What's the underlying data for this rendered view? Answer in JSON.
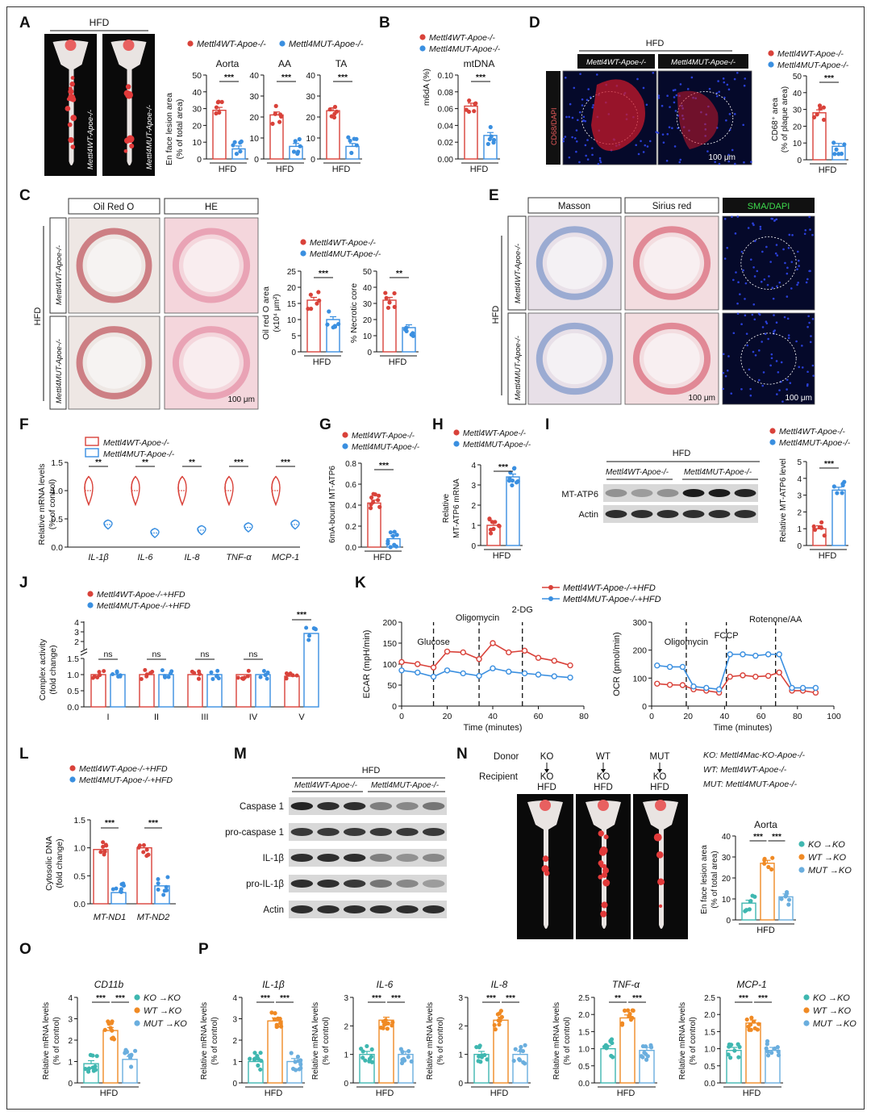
{
  "colors": {
    "wt": "#d9423a",
    "mut": "#3a8fe0",
    "ko": "#3fb7b0",
    "wt_o": "#f08a24",
    "mut_o": "#6aaede"
  },
  "labels": {
    "hfd": "HFD",
    "wt_apoe": "Mettl4WT-Apoe-/-",
    "mut_apoe": "Mettl4MUT-Apoe-/-",
    "wt_apoe_hfd": "Mettl4WT-Apoe-/-+HFD",
    "mut_apoe_hfd": "Mettl4MUT-Apoe-/-+HFD",
    "ko_ko": "KO →KO",
    "wt_ko": "WT →KO",
    "mut_ko": "MUT →KO",
    "scale100": "100 μm"
  },
  "panels": {
    "A": {
      "letter": "A",
      "ylabel1": "En face lesion area",
      "ylabel2": "(% of total area)"
    },
    "B": {
      "letter": "B"
    },
    "C": {
      "letter": "C",
      "col1": "Oil Red O",
      "col2": "HE",
      "y1a": "Oil red O area",
      "y1b": "(x10⁴ μm²)",
      "y2": "% Necrotic core"
    },
    "D": {
      "letter": "D",
      "stain": "CD68/DAPI",
      "y1": "CD68⁺ area",
      "y2": "(% of plaque area)"
    },
    "E": {
      "letter": "E",
      "col1": "Masson",
      "col2": "Sirius red",
      "col3": "SMA/DAPI"
    },
    "F": {
      "letter": "F",
      "y1": "Relative mRNA levels",
      "y2": "(% of control)"
    },
    "G": {
      "letter": "G",
      "y1": "6mA-bound MT-ATP6"
    },
    "H": {
      "letter": "H",
      "y1": "Relative",
      "y2": "MT-ATP6 mRNA"
    },
    "I": {
      "letter": "I",
      "band1": "MT-ATP6",
      "band2": "Actin",
      "y1": "Relative MT-ATP6 level"
    },
    "J": {
      "letter": "J",
      "y1": "Complex activity",
      "y2": "(fold change)"
    },
    "K": {
      "letter": "K",
      "marks1": [
        "Glucose",
        "Oligomycin",
        "2-DG"
      ],
      "marks2": [
        "Oligomycin",
        "FCCP",
        "Rotenone/AA"
      ]
    },
    "L": {
      "letter": "L",
      "y1": "Cytosolic DNA",
      "y2": "(fold change)"
    },
    "M": {
      "letter": "M",
      "bands": [
        "Caspase 1",
        "pro-caspase 1",
        "IL-1β",
        "pro-IL-1β",
        "Actin"
      ]
    },
    "N": {
      "letter": "N",
      "donor": "Donor",
      "recipient": "Recipient",
      "ko": "KO",
      "wt": "WT",
      "mut": "MUT",
      "leg1": "KO: Mettl4Mac-KO-Apoe-/-",
      "leg2": "WT: Mettl4WT-Apoe-/-",
      "leg3": "MUT: Mettl4MUT-Apoe-/-",
      "title": "Aorta",
      "y1": "En face lesion area",
      "y2": "(% of total area)"
    },
    "O": {
      "letter": "O",
      "y1": "Relative mRNA levels",
      "y2": "(% of control)"
    },
    "P": {
      "letter": "P"
    }
  },
  "chart_data": [
    {
      "id": "A1",
      "type": "bar",
      "title": "Aorta",
      "categories": [
        "Mettl4WT-Apoe-/-",
        "Mettl4MUT-Apoe-/-"
      ],
      "values": [
        29,
        6
      ],
      "ylim": [
        0,
        50
      ],
      "ticks": [
        0,
        10,
        20,
        30,
        40,
        50
      ],
      "sig": "***",
      "xlabel": "HFD"
    },
    {
      "id": "A2",
      "type": "bar",
      "title": "AA",
      "categories": [
        "Mettl4WT-Apoe-/-",
        "Mettl4MUT-Apoe-/-"
      ],
      "values": [
        21,
        6
      ],
      "ylim": [
        0,
        40
      ],
      "ticks": [
        0,
        10,
        20,
        30,
        40
      ],
      "sig": "***",
      "xlabel": "HFD"
    },
    {
      "id": "A3",
      "type": "bar",
      "title": "TA",
      "categories": [
        "Mettl4WT-Apoe-/-",
        "Mettl4MUT-Apoe-/-"
      ],
      "values": [
        23,
        6
      ],
      "ylim": [
        0,
        40
      ],
      "ticks": [
        0,
        10,
        20,
        30,
        40
      ],
      "sig": "***",
      "xlabel": "HFD"
    },
    {
      "id": "B",
      "type": "bar",
      "title": "mtDNA",
      "ylabel": "m6dA (%)",
      "categories": [
        "Mettl4WT-Apoe-/-",
        "Mettl4MUT-Apoe-/-"
      ],
      "values": [
        0.063,
        0.028
      ],
      "ylim": [
        0,
        0.1
      ],
      "ticks": [
        "0.00",
        "0.02",
        "0.04",
        "0.06",
        "0.08",
        "0.10"
      ],
      "sig": "***",
      "xlabel": "HFD"
    },
    {
      "id": "C1",
      "type": "bar",
      "categories": [
        "Mettl4WT-Apoe-/-",
        "Mettl4MUT-Apoe-/-"
      ],
      "values": [
        16,
        10
      ],
      "ylim": [
        0,
        25
      ],
      "ticks": [
        0,
        5,
        10,
        15,
        20,
        25
      ],
      "sig": "***",
      "xlabel": "HFD"
    },
    {
      "id": "C2",
      "type": "bar",
      "categories": [
        "Mettl4WT-Apoe-/-",
        "Mettl4MUT-Apoe-/-"
      ],
      "values": [
        32,
        15
      ],
      "ylim": [
        0,
        50
      ],
      "ticks": [
        0,
        10,
        20,
        30,
        40,
        50
      ],
      "sig": "**",
      "xlabel": "HFD"
    },
    {
      "id": "D",
      "type": "bar",
      "categories": [
        "Mettl4WT-Apoe-/-",
        "Mettl4MUT-Apoe-/-"
      ],
      "values": [
        28,
        8
      ],
      "ylim": [
        0,
        50
      ],
      "ticks": [
        0,
        10,
        20,
        30,
        40,
        50
      ],
      "sig": "***",
      "xlabel": "HFD"
    },
    {
      "id": "F",
      "type": "violin",
      "categories": [
        "IL-1β",
        "IL-6",
        "IL-8",
        "TNF-α",
        "MCP-1"
      ],
      "series": [
        {
          "name": "Mettl4WT-Apoe-/-",
          "values": [
            1.0,
            1.0,
            1.0,
            1.0,
            1.0
          ]
        },
        {
          "name": "Mettl4MUT-Apoe-/-",
          "values": [
            0.4,
            0.25,
            0.3,
            0.35,
            0.4
          ]
        }
      ],
      "ylim": [
        0,
        1.5
      ],
      "ticks": [
        "0.0",
        "0.5",
        "1.0",
        "1.5"
      ],
      "sig": [
        "**",
        "**",
        "**",
        "***",
        "***"
      ]
    },
    {
      "id": "G",
      "type": "bar",
      "categories": [
        "Mettl4WT-Apoe-/-",
        "Mettl4MUT-Apoe-/-"
      ],
      "values": [
        0.42,
        0.08
      ],
      "ylim": [
        0,
        0.8
      ],
      "ticks": [
        "0.0",
        "0.2",
        "0.4",
        "0.6",
        "0.8"
      ],
      "sig": "***",
      "xlabel": "HFD"
    },
    {
      "id": "H",
      "type": "bar",
      "categories": [
        "Mettl4WT-Apoe-/-",
        "Mettl4MUT-Apoe-/-"
      ],
      "values": [
        1.0,
        3.4
      ],
      "ylim": [
        0,
        4
      ],
      "ticks": [
        0,
        1,
        2,
        3,
        4
      ],
      "sig": "***",
      "xlabel": "HFD"
    },
    {
      "id": "I",
      "type": "bar",
      "categories": [
        "Mettl4WT-Apoe-/-",
        "Mettl4MUT-Apoe-/-"
      ],
      "values": [
        1.0,
        3.3
      ],
      "ylim": [
        0,
        5
      ],
      "ticks": [
        0,
        1,
        2,
        3,
        4,
        5
      ],
      "sig": "***",
      "xlabel": "HFD"
    },
    {
      "id": "J",
      "type": "bar",
      "categories": [
        "I",
        "II",
        "III",
        "IV",
        "V"
      ],
      "series": [
        {
          "name": "Mettl4WT-Apoe-/-+HFD",
          "values": [
            1.0,
            1.0,
            1.0,
            1.0,
            0.95
          ]
        },
        {
          "name": "Mettl4MUT-Apoe-/-+HFD",
          "values": [
            1.0,
            1.0,
            1.0,
            1.0,
            2.9
          ]
        }
      ],
      "ylim": [
        0,
        4
      ],
      "ticks": [
        "0.0",
        "0.5",
        "1.0",
        "1.5",
        "2",
        "3",
        "4"
      ],
      "sig": [
        "ns",
        "ns",
        "ns",
        "ns",
        "***"
      ]
    },
    {
      "id": "K1",
      "type": "line",
      "xlabel": "Time (minutes)",
      "ylabel": "ECAR (mpH/min)",
      "xlim": [
        0,
        80
      ],
      "ylim": [
        0,
        200
      ],
      "xticks": [
        0,
        20,
        40,
        60,
        80
      ],
      "yticks": [
        0,
        50,
        100,
        150,
        200
      ],
      "x": [
        0,
        7,
        14,
        20,
        27,
        34,
        40,
        47,
        54,
        60,
        67,
        74
      ],
      "series": [
        {
          "name": "Mettl4WT-Apoe-/-+HFD",
          "values": [
            105,
            100,
            92,
            130,
            128,
            112,
            150,
            128,
            132,
            115,
            108,
            97
          ]
        },
        {
          "name": "Mettl4MUT-Apoe-/-+HFD",
          "values": [
            85,
            80,
            70,
            85,
            78,
            72,
            90,
            82,
            78,
            75,
            71,
            68
          ]
        }
      ],
      "events": [
        14,
        34,
        53
      ]
    },
    {
      "id": "K2",
      "type": "line",
      "xlabel": "Time (minutes)",
      "ylabel": "OCR (pmol/min)",
      "xlim": [
        0,
        100
      ],
      "ylim": [
        0,
        300
      ],
      "xticks": [
        0,
        20,
        40,
        60,
        80,
        100
      ],
      "yticks": [
        0,
        100,
        200,
        300
      ],
      "x": [
        3,
        10,
        17,
        23,
        30,
        37,
        43,
        50,
        57,
        64,
        70,
        77,
        83,
        90
      ],
      "series": [
        {
          "name": "Mettl4WT-Apoe-/-+HFD",
          "values": [
            80,
            76,
            75,
            60,
            55,
            48,
            105,
            110,
            105,
            108,
            120,
            55,
            55,
            48
          ]
        },
        {
          "name": "Mettl4MUT-Apoe-/-+HFD",
          "values": [
            145,
            140,
            140,
            70,
            65,
            60,
            185,
            185,
            180,
            185,
            185,
            65,
            65,
            65
          ]
        }
      ],
      "events": [
        19,
        41,
        68
      ]
    },
    {
      "id": "L",
      "type": "bar",
      "categories": [
        "MT-ND1",
        "MT-ND2"
      ],
      "series": [
        {
          "name": "Mettl4WT-Apoe-/-+HFD",
          "values": [
            0.97,
            1.0
          ]
        },
        {
          "name": "Mettl4MUT-Apoe-/-+HFD",
          "values": [
            0.2,
            0.32
          ]
        }
      ],
      "ylim": [
        0,
        1.5
      ],
      "ticks": [
        "0.0",
        "0.5",
        "1.0",
        "1.5"
      ],
      "sig": [
        "***",
        "***"
      ]
    },
    {
      "id": "N",
      "type": "bar",
      "title": "Aorta",
      "categories": [
        "KO →KO",
        "WT →KO",
        "MUT →KO"
      ],
      "values": [
        8,
        27,
        11
      ],
      "ylim": [
        0,
        40
      ],
      "ticks": [
        0,
        10,
        20,
        30,
        40
      ],
      "sig": [
        "***",
        "***"
      ],
      "xlabel": "HFD"
    },
    {
      "id": "O",
      "type": "bar",
      "title": "CD11b",
      "categories": [
        "KO →KO",
        "WT →KO",
        "MUT →KO"
      ],
      "values": [
        0.9,
        2.45,
        1.1
      ],
      "ylim": [
        0,
        4
      ],
      "ticks": [
        0,
        1,
        2,
        3,
        4
      ],
      "sig": [
        "***",
        "***"
      ],
      "xlabel": "HFD"
    },
    {
      "id": "P1",
      "type": "bar",
      "title": "IL-1β",
      "categories": [
        "KO →KO",
        "WT →KO",
        "MUT →KO"
      ],
      "values": [
        1.0,
        2.9,
        1.0
      ],
      "ylim": [
        0,
        4
      ],
      "ticks": [
        0,
        1,
        2,
        3,
        4
      ],
      "sig": [
        "***",
        "***"
      ],
      "xlabel": "HFD"
    },
    {
      "id": "P2",
      "type": "bar",
      "title": "IL-6",
      "categories": [
        "KO →KO",
        "WT →KO",
        "MUT →KO"
      ],
      "values": [
        1.0,
        2.2,
        1.0
      ],
      "ylim": [
        0,
        3
      ],
      "ticks": [
        0,
        1,
        2,
        3
      ],
      "sig": [
        "***",
        "***"
      ],
      "xlabel": "HFD"
    },
    {
      "id": "P3",
      "type": "bar",
      "title": "IL-8",
      "categories": [
        "KO →KO",
        "WT →KO",
        "MUT →KO"
      ],
      "values": [
        1.0,
        2.2,
        1.0
      ],
      "ylim": [
        0,
        3
      ],
      "ticks": [
        0,
        1,
        2,
        3
      ],
      "sig": [
        "***",
        "***"
      ],
      "xlabel": "HFD"
    },
    {
      "id": "P4",
      "type": "bar",
      "title": "TNF-α",
      "categories": [
        "KO →KO",
        "WT →KO",
        "MUT →KO"
      ],
      "values": [
        1.0,
        1.9,
        0.95
      ],
      "ylim": [
        0,
        2.5
      ],
      "ticks": [
        "0.0",
        "0.5",
        "1.0",
        "1.5",
        "2.0",
        "2.5"
      ],
      "sig": [
        "**",
        "***"
      ],
      "xlabel": "HFD"
    },
    {
      "id": "P5",
      "type": "bar",
      "title": "MCP-1",
      "categories": [
        "KO →KO",
        "WT →KO",
        "MUT →KO"
      ],
      "values": [
        0.95,
        1.75,
        0.95
      ],
      "ylim": [
        0,
        2.5
      ],
      "ticks": [
        "0.0",
        "0.5",
        "1.0",
        "1.5",
        "2.0",
        "2.5"
      ],
      "sig": [
        "***",
        "***"
      ],
      "xlabel": "HFD"
    }
  ]
}
